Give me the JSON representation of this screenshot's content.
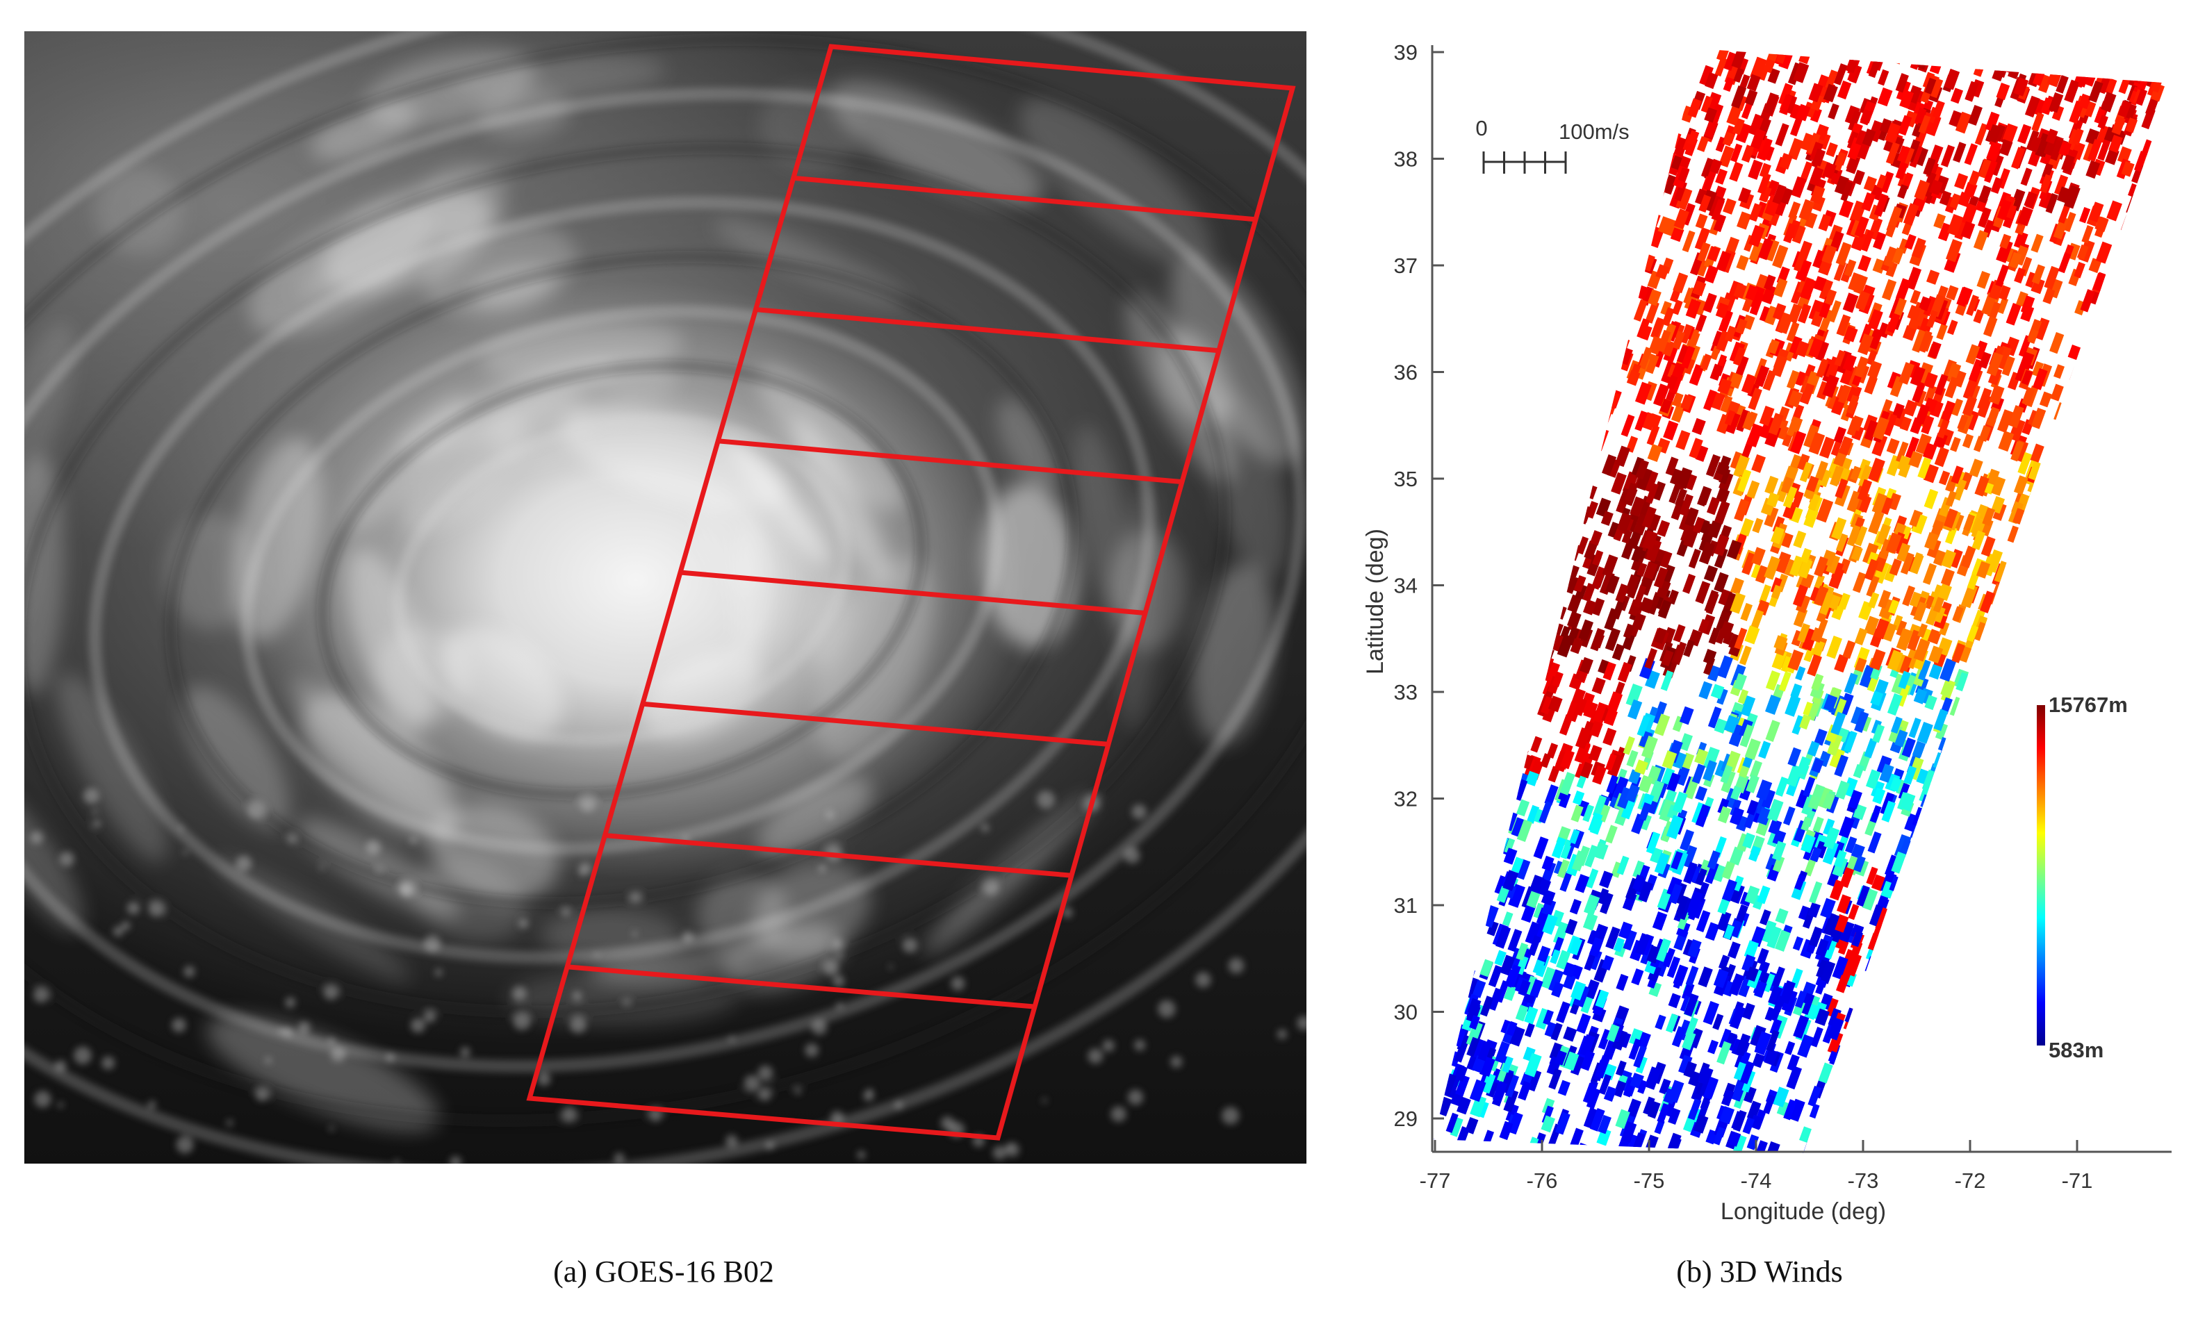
{
  "panel_a": {
    "caption": "(a) GOES-16 B02",
    "swath_color": "#e8191c",
    "swath_cells": 8
  },
  "panel_b": {
    "caption": "(b) 3D Winds",
    "scale_bar": {
      "start_label": "0",
      "end_label": "100m/s"
    },
    "colorbar": {
      "max_label": "15767m",
      "min_label": "583m",
      "colormap": "jet"
    }
  },
  "chart_data": {
    "type": "scatter",
    "xlabel": "Longitude (deg)",
    "ylabel": "Latitude (deg)",
    "xlim": [
      -77.1,
      -70.3
    ],
    "ylim": [
      28.7,
      39
    ],
    "xticks": [
      "-77",
      "-76",
      "-75",
      "-74",
      "-73",
      "-72",
      "-71"
    ],
    "yticks": [
      "29",
      "30",
      "31",
      "32",
      "33",
      "34",
      "35",
      "36",
      "37",
      "38",
      "39"
    ],
    "grid": false,
    "color_variable": "height (m)",
    "color_range": [
      583,
      15767
    ]
  }
}
